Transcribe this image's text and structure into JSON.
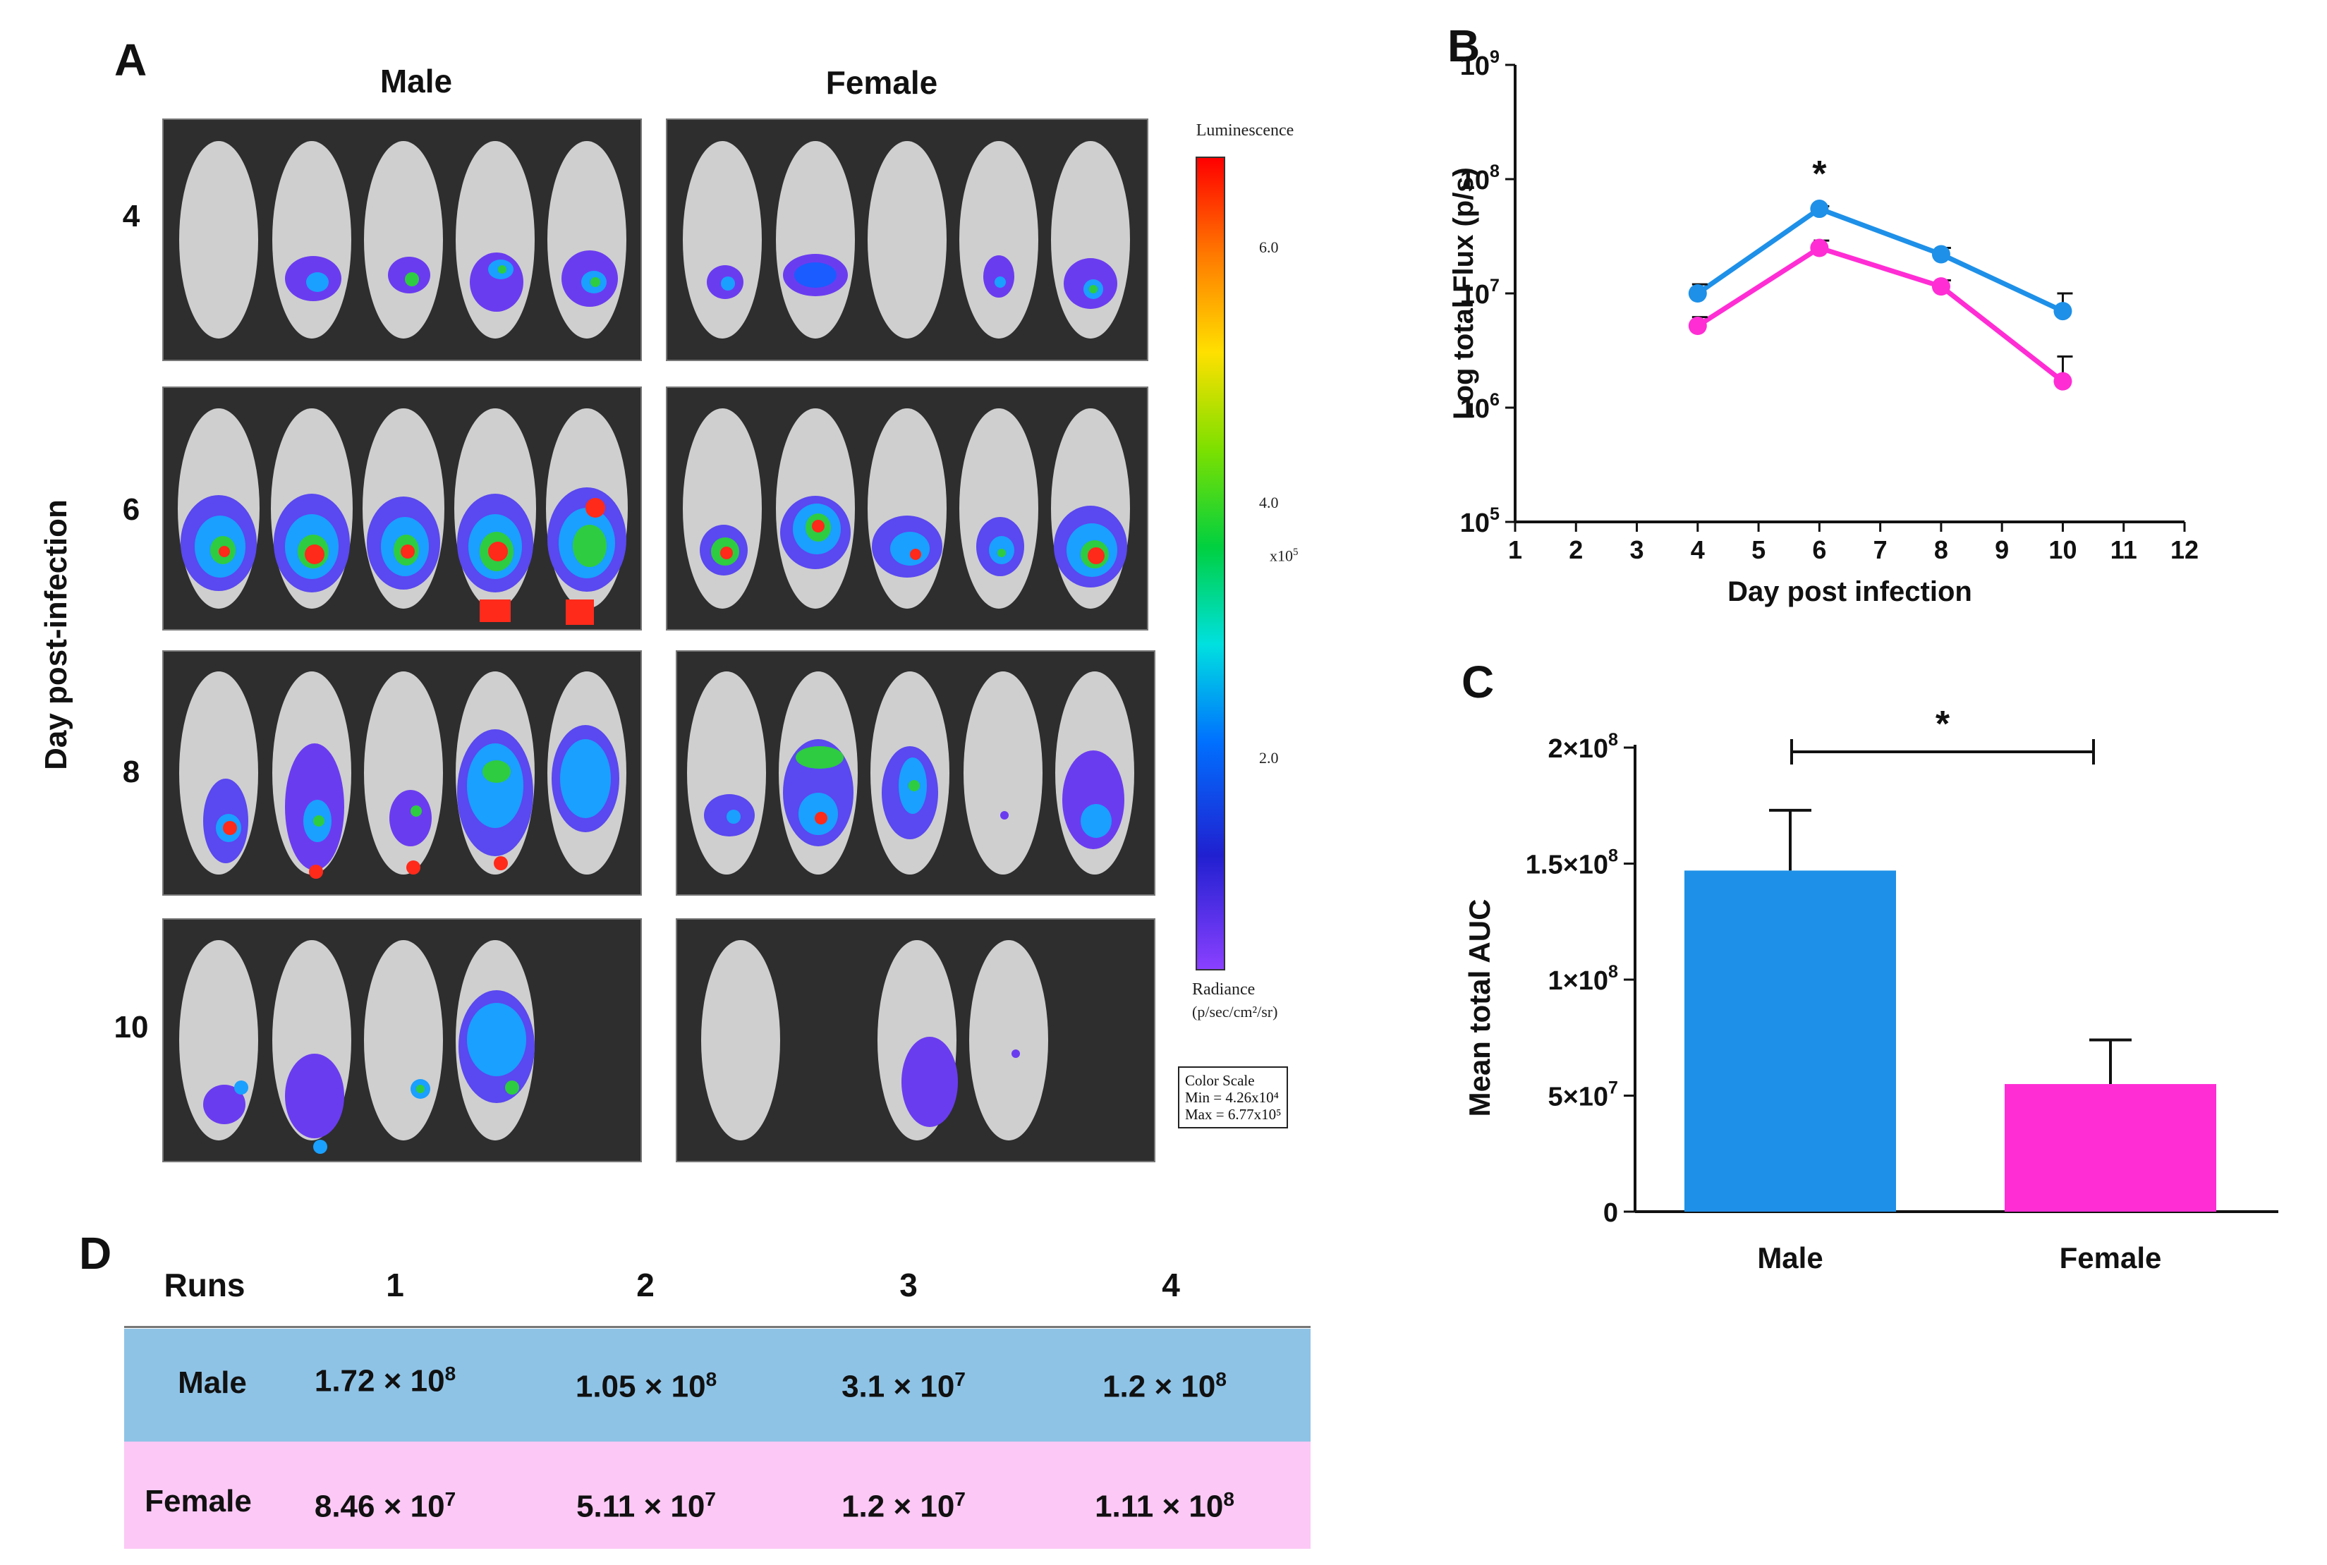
{
  "panels": {
    "a": "A",
    "b": "B",
    "c": "C",
    "d": "D"
  },
  "panel_a": {
    "male_label": "Male",
    "female_label": "Female",
    "y_title": "Day post-infection",
    "days": [
      "4",
      "6",
      "8",
      "10"
    ],
    "colorbar": {
      "title": "Luminescence",
      "ticks": [
        "6.0",
        "4.0",
        "2.0"
      ],
      "multiplier": "x10",
      "multiplier_exp": "5",
      "radiance": "Radiance",
      "radiance_units": "(p/sec/cm²/sr)",
      "scale_title": "Color Scale",
      "scale_min": "Min = 4.26x10⁴",
      "scale_max": "Max = 6.77x10⁵"
    }
  },
  "colors": {
    "male": "#1e90e8",
    "female": "#ff2dd4",
    "male_row": "#8ec3e6",
    "female_row": "#fcc8f5"
  },
  "chart_data": [
    {
      "id": "B",
      "type": "line",
      "xlabel": "Day post infection",
      "ylabel": "Log total Flux (p/s)",
      "yscale": "log",
      "xlim": [
        1,
        12
      ],
      "ylim": [
        100000,
        1000000000
      ],
      "x_ticks": [
        "1",
        "2",
        "3",
        "4",
        "5",
        "6",
        "7",
        "8",
        "9",
        "10",
        "11",
        "12"
      ],
      "y_ticks": [
        {
          "base": "10",
          "exp": "5"
        },
        {
          "base": "10",
          "exp": "6"
        },
        {
          "base": "10",
          "exp": "7"
        },
        {
          "base": "10",
          "exp": "8"
        },
        {
          "base": "10",
          "exp": "9"
        }
      ],
      "annotation": "*",
      "annotation_x": 6,
      "series": [
        {
          "name": "Male",
          "x": [
            4,
            6,
            8,
            10
          ],
          "values": [
            10000000,
            55000000,
            22000000,
            7000000
          ],
          "err": [
            12000000,
            58000000,
            25000000,
            10000000
          ]
        },
        {
          "name": "Female",
          "x": [
            4,
            6,
            8,
            10
          ],
          "values": [
            5200000,
            25000000,
            11500000,
            1700000
          ],
          "err": [
            6200000,
            29000000,
            13000000,
            2800000
          ]
        }
      ]
    },
    {
      "id": "C",
      "type": "bar",
      "ylabel": "Mean total AUC",
      "categories": [
        "Male",
        "Female"
      ],
      "values": [
        147000000,
        55000000
      ],
      "err": [
        173000000,
        74000000
      ],
      "ylim": [
        0,
        200000000
      ],
      "y_ticks": [
        {
          "value": 0,
          "label": "0"
        },
        {
          "value": 50000000,
          "label": "5×10",
          "exp": "7"
        },
        {
          "value": 100000000,
          "label": "1×10",
          "exp": "8"
        },
        {
          "value": 150000000,
          "label": "1.5×10",
          "exp": "8"
        },
        {
          "value": 200000000,
          "label": "2×10",
          "exp": "8"
        }
      ],
      "annotation": "*"
    }
  ],
  "table": {
    "header": "Runs",
    "columns": [
      "1",
      "2",
      "3",
      "4"
    ],
    "rows": [
      {
        "label": "Male",
        "cells": [
          [
            "1.72 × 10",
            "8"
          ],
          [
            "1.05 × 10",
            "8"
          ],
          [
            "3.1 × 10",
            "7"
          ],
          [
            "1.2 × 10",
            "8"
          ]
        ]
      },
      {
        "label": "Female",
        "cells": [
          [
            "8.46 × 10",
            "7"
          ],
          [
            "5.11 × 10",
            "7"
          ],
          [
            "1.2 × 10",
            "7"
          ],
          [
            "1.11 × 10",
            "8"
          ]
        ]
      }
    ]
  }
}
